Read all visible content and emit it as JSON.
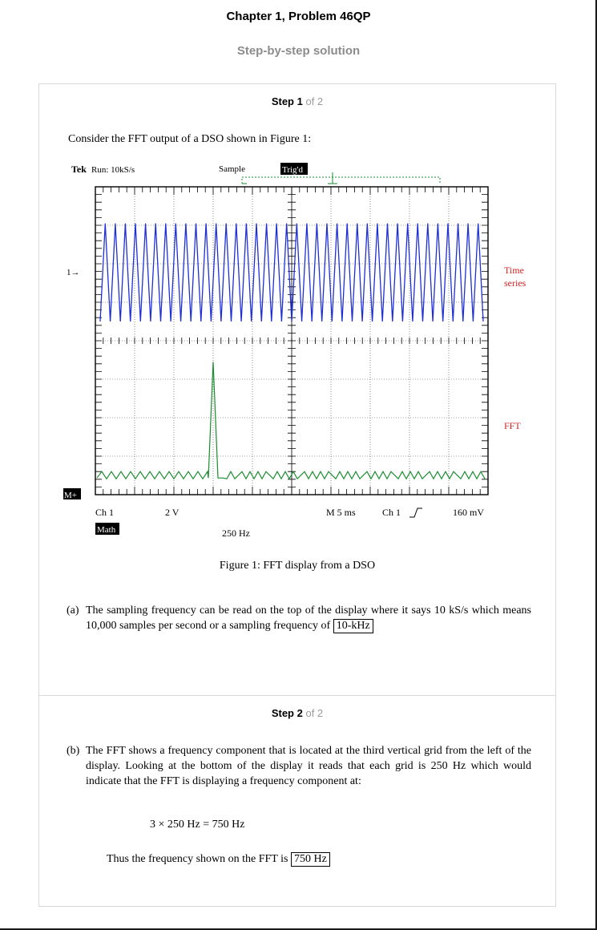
{
  "header": {
    "title": "Chapter 1, Problem 46QP",
    "subtitle": "Step-by-step solution"
  },
  "step1": {
    "label": "Step 1",
    "of": "of 2",
    "intro": "Consider the FFT output of a DSO shown in Figure 1:",
    "figure": {
      "top_left_brand": "Tek",
      "top_left_rate": "Run: 10kS/s",
      "mode": "Sample",
      "trig": "Trig'd",
      "marker_1": "1→",
      "marker_m": "M+",
      "label_time": "Time",
      "label_series": "series",
      "label_fft": "FFT",
      "ch1": "Ch 1",
      "ch1_scale": "2 V",
      "math": "Math",
      "math_scale": "250 Hz",
      "timebase": "M  5 ms",
      "trig_src": "Ch 1",
      "trig_level": "160 mV",
      "fft_peak_division": 3,
      "fft_division_hz": 250,
      "time_series_cycles": 38
    },
    "caption": "Figure 1: FFT display from a DSO",
    "part_a_mark": "(a)",
    "part_a_text": "The sampling frequency can be read on the top of the display where it says 10 kS/s which means 10,000 samples per second or a sampling frequency of",
    "part_a_answer": "10-kHz"
  },
  "step2": {
    "label": "Step 2",
    "of": "of 2",
    "part_b_mark": "(b)",
    "part_b_text": "The FFT shows a frequency component that is located at the third vertical grid from the left of the display. Looking at the bottom of the display it reads that each grid is 250 Hz which would indicate that the FFT is displaying a frequency component at:",
    "equation": "3 × 250 Hz = 750 Hz",
    "conclusion": "Thus the frequency shown on the FFT is",
    "answer": "750 Hz"
  }
}
